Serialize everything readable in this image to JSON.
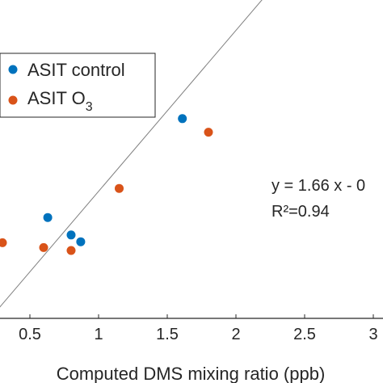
{
  "chart_data": {
    "type": "scatter",
    "xlabel": "Computed DMS mixing ratio (ppb)",
    "ylabel": "",
    "xlim": [
      0.3,
      3.0
    ],
    "ylim": [
      0.0,
      3.5
    ],
    "xticks": [
      0.5,
      1.0,
      1.5,
      2.0,
      2.5,
      3.0
    ],
    "xtick_labels": [
      "0.5",
      "1",
      "1.5",
      "2",
      "2.5",
      "3"
    ],
    "grid": false,
    "legend_position": "top-left",
    "series": [
      {
        "name": "ASIT control",
        "name_base": "ASIT control",
        "name_sub": "",
        "color": "#0072BD",
        "points": [
          {
            "x": 0.63,
            "y": 1.04
          },
          {
            "x": 0.8,
            "y": 0.86
          },
          {
            "x": 0.87,
            "y": 0.79
          },
          {
            "x": 1.61,
            "y": 2.06
          }
        ]
      },
      {
        "name": "ASIT O3",
        "name_base": "ASIT O",
        "name_sub": "3",
        "color": "#D95319",
        "points": [
          {
            "x": 0.3,
            "y": 0.78
          },
          {
            "x": 0.6,
            "y": 0.73
          },
          {
            "x": 0.8,
            "y": 0.7
          },
          {
            "x": 1.15,
            "y": 1.34
          },
          {
            "x": 1.8,
            "y": 1.92
          }
        ]
      }
    ],
    "fit": {
      "slope": 1.66,
      "intercept": -0.35,
      "color": "#7f7f7f",
      "equation_text": "y = 1.66 x - 0",
      "r2_text": "R²=0.94"
    }
  }
}
